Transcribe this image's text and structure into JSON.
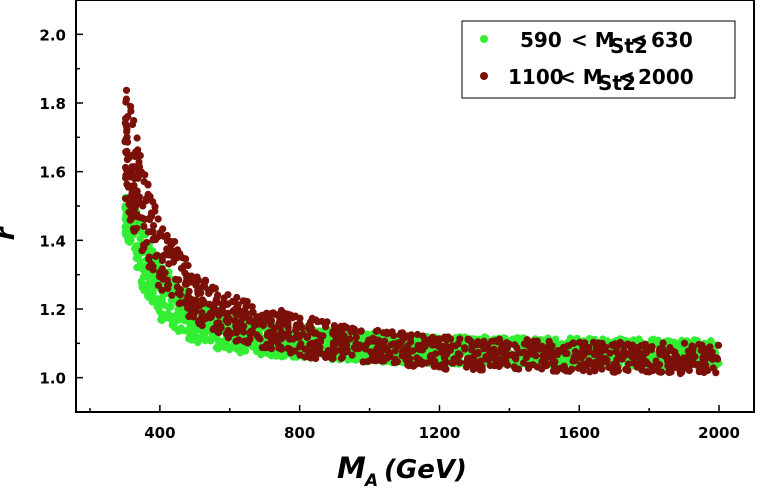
{
  "chart_data": {
    "type": "scatter",
    "xlabel_main": "M",
    "xlabel_sub": "A",
    "xlabel_unit": "(GeV)",
    "ylabel": "r",
    "xlim": [
      160,
      2100
    ],
    "ylim": [
      0.9,
      2.1
    ],
    "xticks": [
      400,
      800,
      1200,
      1600,
      2000
    ],
    "yticks": [
      1.0,
      1.2,
      1.4,
      1.6,
      1.8,
      2.0
    ],
    "xtick_labels": [
      "400",
      "800",
      "1200",
      "1600",
      "2000"
    ],
    "ytick_labels": [
      "1.0",
      "1.2",
      "1.4",
      "1.6",
      "1.8",
      "2.0"
    ],
    "grid": false,
    "legend_position": "top-right",
    "series": [
      {
        "name_parts": [
          "590",
          "< M",
          "St2",
          "<",
          "630"
        ],
        "color": "#33ee33",
        "x_range": [
          300,
          2000
        ],
        "band_lower": [
          [
            300,
            1.42
          ],
          [
            350,
            1.26
          ],
          [
            400,
            1.17
          ],
          [
            500,
            1.1
          ],
          [
            600,
            1.075
          ],
          [
            800,
            1.055
          ],
          [
            1000,
            1.045
          ],
          [
            1200,
            1.04
          ],
          [
            1600,
            1.035
          ],
          [
            2000,
            1.03
          ]
        ],
        "band_upper": [
          [
            300,
            1.58
          ],
          [
            350,
            1.44
          ],
          [
            400,
            1.34
          ],
          [
            500,
            1.23
          ],
          [
            600,
            1.18
          ],
          [
            800,
            1.15
          ],
          [
            1000,
            1.13
          ],
          [
            1200,
            1.12
          ],
          [
            1600,
            1.115
          ],
          [
            2000,
            1.11
          ]
        ]
      },
      {
        "name_parts": [
          "1100",
          "< M",
          "St2",
          "<",
          "2000"
        ],
        "color": "#7a1008",
        "x_range": [
          300,
          2000
        ],
        "band_lower": [
          [
            300,
            1.5
          ],
          [
            350,
            1.36
          ],
          [
            400,
            1.26
          ],
          [
            500,
            1.16
          ],
          [
            600,
            1.11
          ],
          [
            800,
            1.06
          ],
          [
            1000,
            1.04
          ],
          [
            1200,
            1.025
          ],
          [
            1600,
            1.015
          ],
          [
            2000,
            1.01
          ]
        ],
        "band_upper": [
          [
            300,
            1.88
          ],
          [
            350,
            1.62
          ],
          [
            400,
            1.46
          ],
          [
            500,
            1.31
          ],
          [
            600,
            1.24
          ],
          [
            800,
            1.18
          ],
          [
            1000,
            1.14
          ],
          [
            1200,
            1.12
          ],
          [
            1600,
            1.105
          ],
          [
            2000,
            1.1
          ]
        ]
      }
    ]
  }
}
